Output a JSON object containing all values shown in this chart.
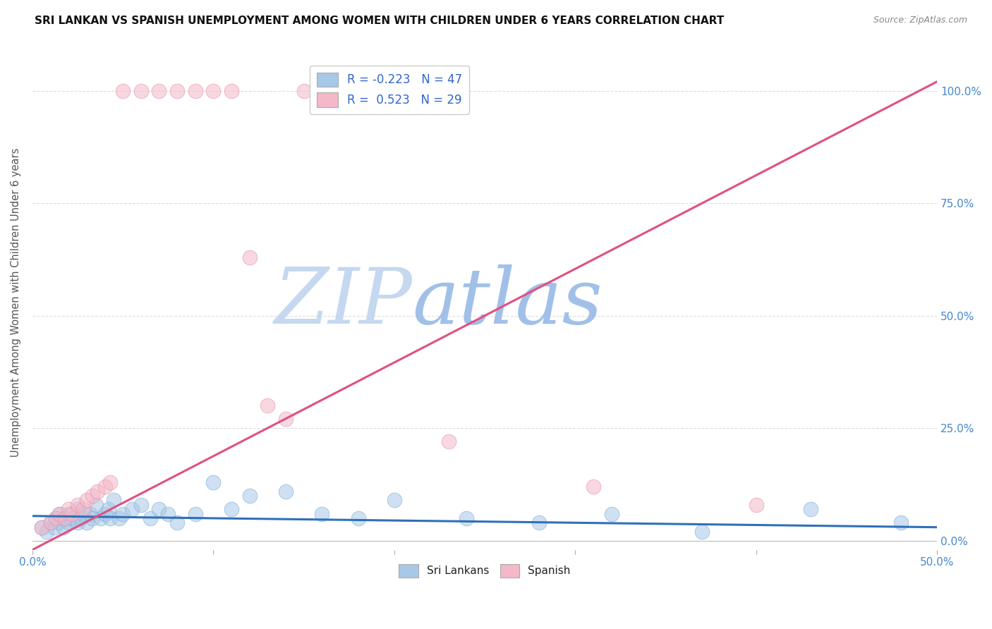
{
  "title": "SRI LANKAN VS SPANISH UNEMPLOYMENT AMONG WOMEN WITH CHILDREN UNDER 6 YEARS CORRELATION CHART",
  "source": "Source: ZipAtlas.com",
  "ylabel": "Unemployment Among Women with Children Under 6 years",
  "xlim": [
    0.0,
    0.5
  ],
  "ylim": [
    -0.02,
    1.08
  ],
  "plot_ylim": [
    0.0,
    1.0
  ],
  "blue_color": "#a8c8e8",
  "pink_color": "#f4b8c8",
  "blue_edge_color": "#7aafd4",
  "pink_edge_color": "#e890aa",
  "blue_line_color": "#3070b8",
  "pink_line_color": "#e05080",
  "watermark_zip_color": "#c5d8f0",
  "watermark_atlas_color": "#a0c0e8",
  "background_color": "#ffffff",
  "grid_color": "#dddddd",
  "tick_color": "#4488cc",
  "title_color": "#111111",
  "source_color": "#888888",
  "legend_text_color": "#3366cc",
  "legend_label_color": "#222222",
  "sl_R": -0.223,
  "sl_N": 47,
  "sp_R": 0.523,
  "sp_N": 29,
  "sl_line_x0": 0.0,
  "sl_line_x1": 0.5,
  "sl_line_y0": 0.055,
  "sl_line_y1": 0.03,
  "sp_line_x0": 0.0,
  "sp_line_x1": 0.5,
  "sp_line_y0": -0.02,
  "sp_line_y1": 1.02,
  "sri_lankan_x": [
    0.005,
    0.008,
    0.01,
    0.012,
    0.013,
    0.015,
    0.015,
    0.017,
    0.018,
    0.02,
    0.02,
    0.022,
    0.025,
    0.025,
    0.027,
    0.028,
    0.03,
    0.032,
    0.033,
    0.035,
    0.038,
    0.04,
    0.042,
    0.043,
    0.045,
    0.048,
    0.05,
    0.055,
    0.06,
    0.065,
    0.07,
    0.075,
    0.08,
    0.09,
    0.1,
    0.11,
    0.12,
    0.14,
    0.16,
    0.18,
    0.2,
    0.24,
    0.28,
    0.32,
    0.37,
    0.43,
    0.48
  ],
  "sri_lankan_y": [
    0.03,
    0.02,
    0.04,
    0.03,
    0.05,
    0.04,
    0.06,
    0.03,
    0.05,
    0.04,
    0.06,
    0.05,
    0.04,
    0.07,
    0.05,
    0.06,
    0.04,
    0.06,
    0.05,
    0.08,
    0.05,
    0.06,
    0.07,
    0.05,
    0.09,
    0.05,
    0.06,
    0.07,
    0.08,
    0.05,
    0.07,
    0.06,
    0.04,
    0.06,
    0.13,
    0.07,
    0.1,
    0.11,
    0.06,
    0.05,
    0.09,
    0.05,
    0.04,
    0.06,
    0.02,
    0.07,
    0.04
  ],
  "spanish_x": [
    0.005,
    0.01,
    0.013,
    0.015,
    0.018,
    0.02,
    0.022,
    0.025,
    0.028,
    0.03,
    0.033,
    0.036,
    0.04,
    0.043,
    0.05,
    0.06,
    0.07,
    0.08,
    0.09,
    0.1,
    0.11,
    0.12,
    0.13,
    0.14,
    0.15,
    0.16,
    0.23,
    0.31,
    0.4
  ],
  "spanish_y": [
    0.03,
    0.04,
    0.05,
    0.06,
    0.05,
    0.07,
    0.06,
    0.08,
    0.07,
    0.09,
    0.1,
    0.11,
    0.12,
    0.13,
    1.0,
    1.0,
    1.0,
    1.0,
    1.0,
    1.0,
    1.0,
    0.63,
    0.3,
    0.27,
    1.0,
    1.0,
    0.22,
    0.12,
    0.08
  ]
}
